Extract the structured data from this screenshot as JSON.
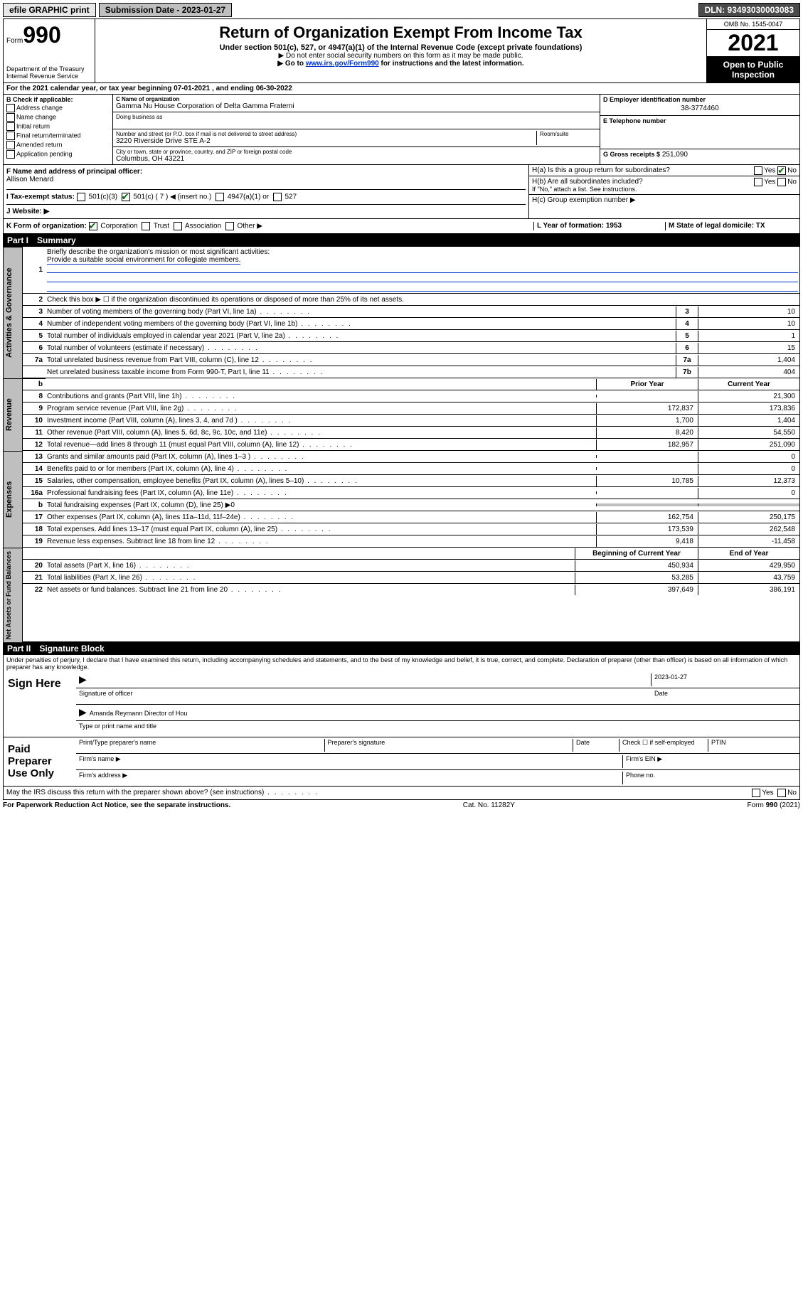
{
  "topbar": {
    "efile": "efile GRAPHIC print",
    "submission": "Submission Date - 2023-01-27",
    "dln": "DLN: 93493030003083"
  },
  "header": {
    "form": "Form",
    "formnum": "990",
    "dept": "Department of the Treasury",
    "irs": "Internal Revenue Service",
    "title": "Return of Organization Exempt From Income Tax",
    "sub": "Under section 501(c), 527, or 4947(a)(1) of the Internal Revenue Code (except private foundations)",
    "note1": "▶ Do not enter social security numbers on this form as it may be made public.",
    "note2_pre": "▶ Go to ",
    "note2_link": "www.irs.gov/Form990",
    "note2_post": " for instructions and the latest information.",
    "omb": "OMB No. 1545-0047",
    "year": "2021",
    "inspection": "Open to Public Inspection"
  },
  "sectionA": "For the 2021 calendar year, or tax year beginning 07-01-2021   , and ending 06-30-2022",
  "sectionB": {
    "label": "B Check if applicable:",
    "items": [
      "Address change",
      "Name change",
      "Initial return",
      "Final return/terminated",
      "Amended return",
      "Application pending"
    ]
  },
  "sectionC": {
    "name_label": "C Name of organization",
    "name": "Gamma Nu House Corporation of Delta Gamma Fraterni",
    "dba_label": "Doing business as",
    "addr_label": "Number and street (or P.O. box if mail is not delivered to street address)",
    "room_label": "Room/suite",
    "addr": "3220 Riverside Drive STE A-2",
    "city_label": "City or town, state or province, country, and ZIP or foreign postal code",
    "city": "Columbus, OH  43221"
  },
  "sectionD": {
    "label": "D Employer identification number",
    "val": "38-3774460"
  },
  "sectionE": {
    "label": "E Telephone number"
  },
  "sectionG": {
    "label": "G Gross receipts $",
    "val": "251,090"
  },
  "sectionF": {
    "label": "F Name and address of principal officer:",
    "val": "Allison Menard"
  },
  "sectionH": {
    "ha": "H(a)  Is this a group return for subordinates?",
    "hb": "H(b)  Are all subordinates included?",
    "hb_note": "If \"No,\" attach a list. See instructions.",
    "hc": "H(c)  Group exemption number ▶",
    "yes": "Yes",
    "no": "No"
  },
  "sectionI": {
    "label": "I   Tax-exempt status:",
    "c3": "501(c)(3)",
    "c": "501(c) ( 7 ) ◀ (insert no.)",
    "a1": "4947(a)(1) or",
    "s527": "527"
  },
  "sectionJ": "J   Website: ▶",
  "sectionK": {
    "label": "K Form of organization:",
    "corp": "Corporation",
    "trust": "Trust",
    "assoc": "Association",
    "other": "Other ▶"
  },
  "sectionL": "L Year of formation: 1953",
  "sectionM": "M State of legal domicile: TX",
  "part1": {
    "header_label": "Part I",
    "header_title": "Summary",
    "line1": "Briefly describe the organization's mission or most significant activities:",
    "mission": "Provide a suitable social environment for collegiate members.",
    "line2": "Check this box ▶ ☐  if the organization discontinued its operations or disposed of more than 25% of its net assets.",
    "lines": [
      {
        "n": "3",
        "t": "Number of voting members of the governing body (Part VI, line 1a)",
        "box": "3",
        "v": "10"
      },
      {
        "n": "4",
        "t": "Number of independent voting members of the governing body (Part VI, line 1b)",
        "box": "4",
        "v": "10"
      },
      {
        "n": "5",
        "t": "Total number of individuals employed in calendar year 2021 (Part V, line 2a)",
        "box": "5",
        "v": "1"
      },
      {
        "n": "6",
        "t": "Total number of volunteers (estimate if necessary)",
        "box": "6",
        "v": "15"
      },
      {
        "n": "7a",
        "t": "Total unrelated business revenue from Part VIII, column (C), line 12",
        "box": "7a",
        "v": "1,404"
      },
      {
        "n": "",
        "t": "Net unrelated business taxable income from Form 990-T, Part I, line 11",
        "box": "7b",
        "v": "404"
      }
    ],
    "col_hdr1": "Prior Year",
    "col_hdr2": "Current Year",
    "revenue": [
      {
        "n": "8",
        "t": "Contributions and grants (Part VIII, line 1h)",
        "p": "",
        "c": "21,300"
      },
      {
        "n": "9",
        "t": "Program service revenue (Part VIII, line 2g)",
        "p": "172,837",
        "c": "173,836"
      },
      {
        "n": "10",
        "t": "Investment income (Part VIII, column (A), lines 3, 4, and 7d )",
        "p": "1,700",
        "c": "1,404"
      },
      {
        "n": "11",
        "t": "Other revenue (Part VIII, column (A), lines 5, 6d, 8c, 9c, 10c, and 11e)",
        "p": "8,420",
        "c": "54,550"
      },
      {
        "n": "12",
        "t": "Total revenue—add lines 8 through 11 (must equal Part VIII, column (A), line 12)",
        "p": "182,957",
        "c": "251,090"
      }
    ],
    "expenses": [
      {
        "n": "13",
        "t": "Grants and similar amounts paid (Part IX, column (A), lines 1–3 )",
        "p": "",
        "c": "0"
      },
      {
        "n": "14",
        "t": "Benefits paid to or for members (Part IX, column (A), line 4)",
        "p": "",
        "c": "0"
      },
      {
        "n": "15",
        "t": "Salaries, other compensation, employee benefits (Part IX, column (A), lines 5–10)",
        "p": "10,785",
        "c": "12,373"
      },
      {
        "n": "16a",
        "t": "Professional fundraising fees (Part IX, column (A), line 11e)",
        "p": "",
        "c": "0"
      },
      {
        "n": "b",
        "t": "Total fundraising expenses (Part IX, column (D), line 25) ▶0",
        "p": "gray",
        "c": "gray"
      },
      {
        "n": "17",
        "t": "Other expenses (Part IX, column (A), lines 11a–11d, 11f–24e)",
        "p": "162,754",
        "c": "250,175"
      },
      {
        "n": "18",
        "t": "Total expenses. Add lines 13–17 (must equal Part IX, column (A), line 25)",
        "p": "173,539",
        "c": "262,548"
      },
      {
        "n": "19",
        "t": "Revenue less expenses. Subtract line 18 from line 12",
        "p": "9,418",
        "c": "-11,458"
      }
    ],
    "na_hdr1": "Beginning of Current Year",
    "na_hdr2": "End of Year",
    "netassets": [
      {
        "n": "20",
        "t": "Total assets (Part X, line 16)",
        "p": "450,934",
        "c": "429,950"
      },
      {
        "n": "21",
        "t": "Total liabilities (Part X, line 26)",
        "p": "53,285",
        "c": "43,759"
      },
      {
        "n": "22",
        "t": "Net assets or fund balances. Subtract line 21 from line 20",
        "p": "397,649",
        "c": "386,191"
      }
    ],
    "vtab_gov": "Activities & Governance",
    "vtab_rev": "Revenue",
    "vtab_exp": "Expenses",
    "vtab_na": "Net Assets or Fund Balances"
  },
  "part2": {
    "header_label": "Part II",
    "header_title": "Signature Block",
    "perjury": "Under penalties of perjury, I declare that I have examined this return, including accompanying schedules and statements, and to the best of my knowledge and belief, it is true, correct, and complete. Declaration of preparer (other than officer) is based on all information of which preparer has any knowledge.",
    "sign_here": "Sign Here",
    "sig_officer": "Signature of officer",
    "date": "Date",
    "date_val": "2023-01-27",
    "name_title": "Amanda Reymann  Director of Hou",
    "name_title_label": "Type or print name and title",
    "paid": "Paid Preparer Use Only",
    "prep_name": "Print/Type preparer's name",
    "prep_sig": "Preparer's signature",
    "prep_date": "Date",
    "check_if": "Check ☐ if self-employed",
    "ptin": "PTIN",
    "firm_name": "Firm's name    ▶",
    "firm_ein": "Firm's EIN ▶",
    "firm_addr": "Firm's address ▶",
    "phone": "Phone no."
  },
  "bottom": {
    "discuss": "May the IRS discuss this return with the preparer shown above? (see instructions)",
    "yes": "Yes",
    "no": "No",
    "paperwork": "For Paperwork Reduction Act Notice, see the separate instructions.",
    "cat": "Cat. No. 11282Y",
    "form": "Form 990 (2021)"
  }
}
